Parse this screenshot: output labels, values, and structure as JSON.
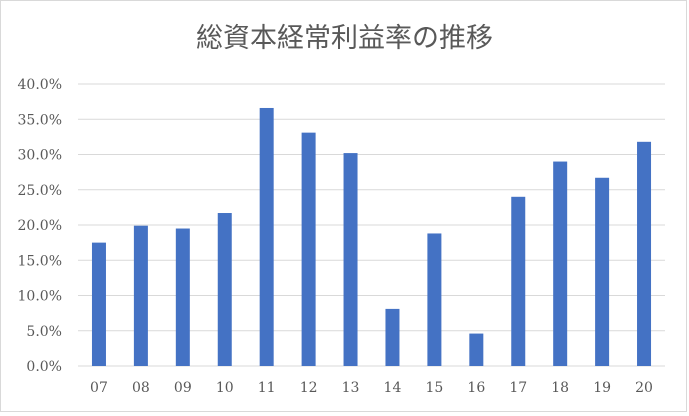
{
  "chart_data": {
    "type": "bar",
    "title": "総資本経常利益率の推移",
    "categories": [
      "07",
      "08",
      "09",
      "10",
      "11",
      "12",
      "13",
      "14",
      "15",
      "16",
      "17",
      "18",
      "19",
      "20"
    ],
    "values": [
      17.5,
      19.9,
      19.5,
      21.7,
      36.6,
      33.1,
      30.2,
      8.1,
      18.8,
      4.6,
      24.0,
      29.0,
      26.7,
      31.8
    ],
    "ylim": [
      0,
      40
    ],
    "ytick_labels": [
      "0.0%",
      "5.0%",
      "10.0%",
      "15.0%",
      "20.0%",
      "25.0%",
      "30.0%",
      "35.0%",
      "40.0%"
    ],
    "grid": true,
    "bar_color": "#4472c4",
    "grid_color": "#d9d9d9",
    "text_color": "#595959"
  }
}
